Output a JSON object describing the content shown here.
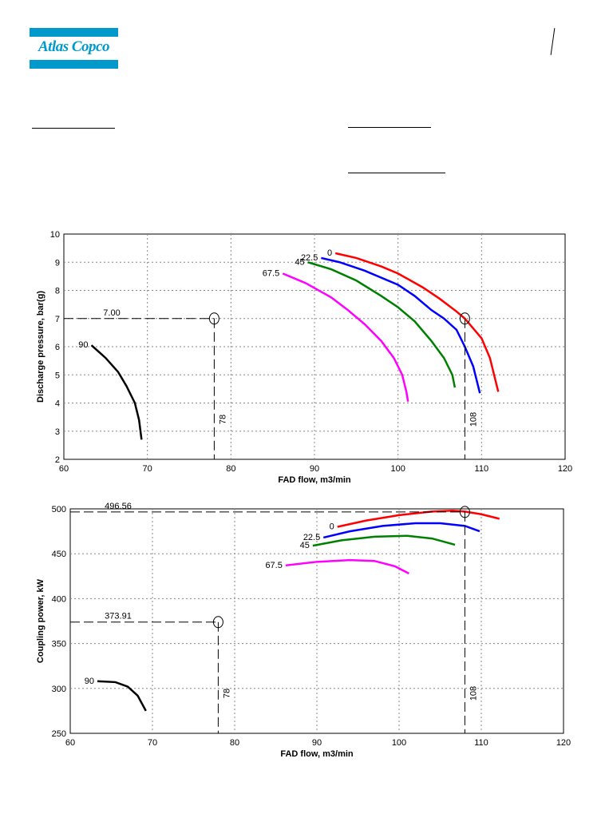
{
  "header": {
    "logo_text": "Atlas Copco",
    "brand_color": "#0099cc"
  },
  "chart_data": [
    {
      "type": "line",
      "title": "",
      "xlabel": "FAD flow, m3/min",
      "ylabel": "Discharge pressure, bar(g)",
      "xlim": [
        60,
        120
      ],
      "ylim": [
        2,
        10
      ],
      "xticks": [
        "60",
        "70",
        "80",
        "90",
        "100",
        "110",
        "120"
      ],
      "yticks": [
        "2",
        "3",
        "4",
        "5",
        "6",
        "7",
        "8",
        "9",
        "10"
      ],
      "grid": true,
      "series": [
        {
          "name": "0",
          "color": "#ff0000",
          "x": [
            92.5,
            95,
            98,
            100,
            103,
            105,
            107,
            108,
            110,
            111,
            112
          ],
          "y": [
            9.32,
            9.15,
            8.85,
            8.6,
            8.1,
            7.7,
            7.25,
            7.0,
            6.3,
            5.6,
            4.4
          ]
        },
        {
          "name": "22.5",
          "color": "#0000ff",
          "x": [
            90.8,
            93,
            96,
            100,
            102,
            104,
            105.5,
            107,
            108,
            109,
            109.8
          ],
          "y": [
            9.15,
            9.0,
            8.7,
            8.2,
            7.8,
            7.3,
            7.0,
            6.6,
            6.0,
            5.3,
            4.35
          ]
        },
        {
          "name": "45",
          "color": "#008000",
          "x": [
            89.2,
            92,
            95,
            98,
            100,
            102,
            104,
            105.5,
            106.5,
            106.8
          ],
          "y": [
            9.0,
            8.75,
            8.35,
            7.8,
            7.4,
            6.9,
            6.2,
            5.6,
            5.0,
            4.55
          ]
        },
        {
          "name": "67.5",
          "color": "#ff00ff",
          "x": [
            86.2,
            89,
            92,
            94,
            96,
            98,
            99.5,
            100.5,
            101,
            101.2
          ],
          "y": [
            8.6,
            8.25,
            7.75,
            7.3,
            6.8,
            6.2,
            5.6,
            5.0,
            4.4,
            4.05
          ]
        },
        {
          "name": "90",
          "color": "#000000",
          "x": [
            63.3,
            65,
            66.5,
            67.5,
            68.5,
            69,
            69.3
          ],
          "y": [
            6.05,
            5.6,
            5.1,
            4.6,
            4.0,
            3.4,
            2.7
          ]
        }
      ],
      "markers": [
        {
          "x": 78,
          "y": 7.0,
          "xlabel": "78",
          "ylabel": "7.00",
          "hline": true
        },
        {
          "x": 108,
          "y": 7.0,
          "xlabel": "108",
          "ylabel": "",
          "hline": false
        }
      ]
    },
    {
      "type": "line",
      "title": "",
      "xlabel": "FAD flow, m3/min",
      "ylabel": "Coupling power, kW",
      "xlim": [
        60,
        120
      ],
      "ylim": [
        250,
        500
      ],
      "xticks": [
        "60",
        "70",
        "80",
        "90",
        "100",
        "110",
        "120"
      ],
      "yticks": [
        "250",
        "300",
        "350",
        "400",
        "450",
        "500"
      ],
      "grid": true,
      "series": [
        {
          "name": "0",
          "color": "#ff0000",
          "x": [
            92.5,
            96,
            100,
            104,
            106.5,
            108,
            110,
            112.2
          ],
          "y": [
            480,
            487,
            493,
            497,
            498,
            497,
            494,
            489
          ]
        },
        {
          "name": "22.5",
          "color": "#0000ff",
          "x": [
            90.8,
            94,
            98,
            102,
            105,
            108,
            109.8
          ],
          "y": [
            468,
            475,
            481,
            484,
            484,
            481,
            475
          ]
        },
        {
          "name": "45",
          "color": "#008000",
          "x": [
            89.5,
            93,
            97,
            101,
            104,
            106.8
          ],
          "y": [
            459,
            465,
            469,
            470,
            467,
            460
          ]
        },
        {
          "name": "67.5",
          "color": "#ff00ff",
          "x": [
            86.2,
            90,
            94,
            97,
            99.5,
            101.2
          ],
          "y": [
            437,
            441,
            443,
            442,
            436,
            428
          ]
        },
        {
          "name": "90",
          "color": "#000000",
          "x": [
            63.3,
            65.5,
            67,
            68.2,
            69.2
          ],
          "y": [
            308,
            307,
            302,
            292,
            275
          ]
        }
      ],
      "markers": [
        {
          "x": 78,
          "y": 373.91,
          "xlabel": "78",
          "ylabel": "373.91",
          "hline": true
        },
        {
          "x": 108,
          "y": 496.56,
          "xlabel": "108",
          "ylabel": "496.56",
          "hline": true
        }
      ]
    }
  ]
}
